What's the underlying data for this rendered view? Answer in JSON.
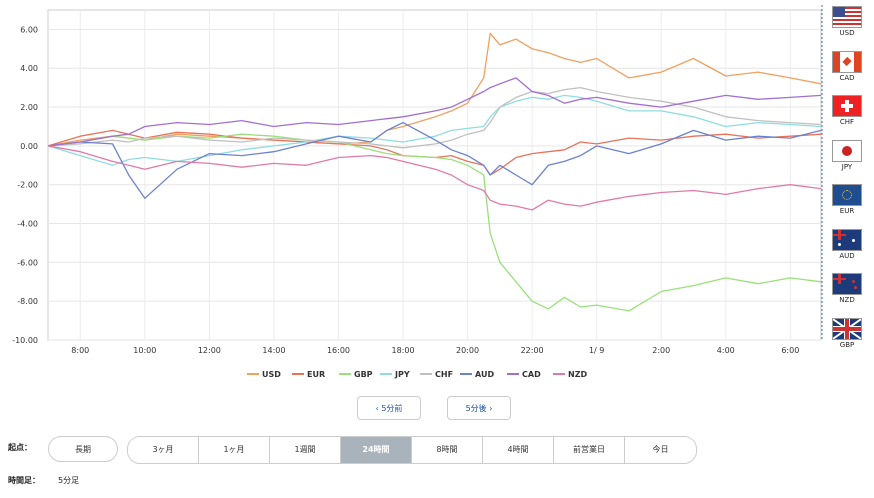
{
  "chart_data": {
    "type": "line",
    "title": "",
    "xlabel": "",
    "ylabel": "",
    "ylim": [
      -10,
      7
    ],
    "y_ticks": [
      "6.00",
      "4.00",
      "2.00",
      "0.00",
      "-2.00",
      "-4.00",
      "-6.00",
      "-8.00",
      "-10.00"
    ],
    "y_tick_values": [
      6,
      4,
      2,
      0,
      -2,
      -4,
      -6,
      -8,
      -10
    ],
    "x_ticks": [
      "8:00",
      "10:00",
      "12:00",
      "14:00",
      "16:00",
      "18:00",
      "20:00",
      "22:00",
      "1/ 9",
      "2:00",
      "4:00",
      "6:00"
    ],
    "x_tick_hours": [
      8,
      10,
      12,
      14,
      16,
      18,
      20,
      22,
      24,
      26,
      28,
      30
    ],
    "x_range_hours": [
      7.0,
      30.95
    ],
    "grid": true,
    "legend_position": "bottom",
    "x_hours": [
      7.0,
      8.0,
      9.0,
      9.5,
      10.0,
      11.0,
      12.0,
      13.0,
      14.0,
      15.0,
      16.0,
      17.0,
      17.5,
      18.0,
      19.0,
      19.5,
      20.0,
      20.5,
      20.7,
      21.0,
      21.5,
      22.0,
      22.5,
      23.0,
      23.5,
      24.0,
      25.0,
      26.0,
      27.0,
      28.0,
      29.0,
      30.0,
      30.95
    ],
    "series": [
      {
        "name": "USD",
        "color": "#f0a060",
        "values": [
          0,
          0.3,
          0.5,
          0.4,
          0.3,
          0.6,
          0.5,
          0.4,
          0.3,
          0.2,
          0.1,
          0.2,
          0.8,
          1.0,
          1.5,
          1.8,
          2.2,
          3.5,
          5.8,
          5.2,
          5.5,
          5.0,
          4.8,
          4.5,
          4.3,
          4.5,
          3.5,
          3.8,
          4.5,
          3.6,
          3.8,
          3.5,
          3.2
        ]
      },
      {
        "name": "EUR",
        "color": "#e8735a",
        "values": [
          0,
          0.5,
          0.8,
          0.6,
          0.4,
          0.7,
          0.6,
          0.4,
          0.3,
          0.2,
          0.1,
          0,
          -0.2,
          -0.5,
          -0.6,
          -0.5,
          -0.8,
          -1.0,
          -1.5,
          -1.2,
          -0.6,
          -0.4,
          -0.3,
          -0.2,
          0.2,
          0.1,
          0.4,
          0.3,
          0.5,
          0.6,
          0.4,
          0.5,
          0.6
        ]
      },
      {
        "name": "GBP",
        "color": "#99e07a",
        "values": [
          0,
          0.2,
          0.5,
          0.4,
          0.3,
          0.5,
          0.4,
          0.6,
          0.5,
          0.3,
          0.2,
          -0.2,
          -0.4,
          -0.5,
          -0.6,
          -0.7,
          -1.0,
          -1.5,
          -4.5,
          -6.0,
          -7.0,
          -8.0,
          -8.4,
          -7.8,
          -8.3,
          -8.2,
          -8.5,
          -7.5,
          -7.2,
          -6.8,
          -7.1,
          -6.8,
          -7.0
        ]
      },
      {
        "name": "JPY",
        "color": "#90dce0",
        "values": [
          0,
          -0.5,
          -1.0,
          -0.7,
          -0.6,
          -0.8,
          -0.5,
          -0.2,
          0,
          0.2,
          0.5,
          0.4,
          0.3,
          0.2,
          0.5,
          0.8,
          0.9,
          1.0,
          1.5,
          2.0,
          2.3,
          2.5,
          2.4,
          2.6,
          2.5,
          2.3,
          1.8,
          1.8,
          1.5,
          1.0,
          1.2,
          1.1,
          1.0
        ]
      },
      {
        "name": "CHF",
        "color": "#c0c0c0",
        "values": [
          0,
          0.1,
          0.3,
          0.2,
          0.4,
          0.5,
          0.3,
          0.2,
          0.4,
          0.3,
          0.2,
          0.1,
          0,
          -0.1,
          0.1,
          0.3,
          0.6,
          0.8,
          1.2,
          2.0,
          2.5,
          2.8,
          2.7,
          2.9,
          3.0,
          2.8,
          2.5,
          2.3,
          2.0,
          1.5,
          1.3,
          1.2,
          1.1
        ]
      },
      {
        "name": "AUD",
        "color": "#6c82d0",
        "values": [
          0,
          0.2,
          0.1,
          -1.5,
          -2.7,
          -1.2,
          -0.4,
          -0.5,
          -0.3,
          0.1,
          0.5,
          0.2,
          0.8,
          1.2,
          0.3,
          -0.2,
          -0.5,
          -1.0,
          -1.5,
          -1.0,
          -1.5,
          -2.0,
          -1.0,
          -0.8,
          -0.5,
          0,
          -0.4,
          0.1,
          0.8,
          0.3,
          0.5,
          0.4,
          0.8
        ]
      },
      {
        "name": "CAD",
        "color": "#a070d0",
        "values": [
          0,
          0.2,
          0.5,
          0.6,
          1.0,
          1.2,
          1.1,
          1.3,
          1.0,
          1.2,
          1.1,
          1.3,
          1.4,
          1.5,
          1.8,
          2.0,
          2.4,
          2.8,
          3.0,
          3.2,
          3.5,
          2.8,
          2.6,
          2.2,
          2.4,
          2.5,
          2.2,
          2.0,
          2.3,
          2.6,
          2.4,
          2.5,
          2.6
        ]
      },
      {
        "name": "NZD",
        "color": "#e07aa8",
        "values": [
          0,
          -0.3,
          -0.8,
          -1.0,
          -1.2,
          -0.8,
          -0.9,
          -1.1,
          -0.9,
          -1.0,
          -0.6,
          -0.5,
          -0.6,
          -0.8,
          -1.2,
          -1.5,
          -2.0,
          -2.3,
          -2.8,
          -3.0,
          -3.1,
          -3.3,
          -2.8,
          -3.0,
          -3.1,
          -2.9,
          -2.6,
          -2.4,
          -2.3,
          -2.5,
          -2.2,
          -2.0,
          -2.2
        ]
      }
    ]
  },
  "flags": [
    {
      "code": "USD",
      "icon": "us-flag-icon"
    },
    {
      "code": "CAD",
      "icon": "canada-flag-icon"
    },
    {
      "code": "CHF",
      "icon": "swiss-flag-icon"
    },
    {
      "code": "JPY",
      "icon": "japan-flag-icon"
    },
    {
      "code": "EUR",
      "icon": "eu-flag-icon"
    },
    {
      "code": "AUD",
      "icon": "australia-flag-icon"
    },
    {
      "code": "NZD",
      "icon": "new-zealand-flag-icon"
    },
    {
      "code": "GBP",
      "icon": "uk-flag-icon"
    }
  ],
  "nav": {
    "prev_label": "‹ 5分前",
    "next_label": "5分後 ›"
  },
  "start_point": {
    "label": "起点：",
    "long_term_label": "長期",
    "tabs": [
      "3ヶ月",
      "1ヶ月",
      "1週間",
      "24時間",
      "8時間",
      "4時間",
      "前営業日",
      "今日"
    ],
    "active_tab": "24時間"
  },
  "interval": {
    "label": "時間足：",
    "value": "5分足"
  },
  "colors": {
    "active_tab": "#a8b3bb",
    "nav_text": "#1a54a8",
    "divider": "#3a6fc8"
  }
}
